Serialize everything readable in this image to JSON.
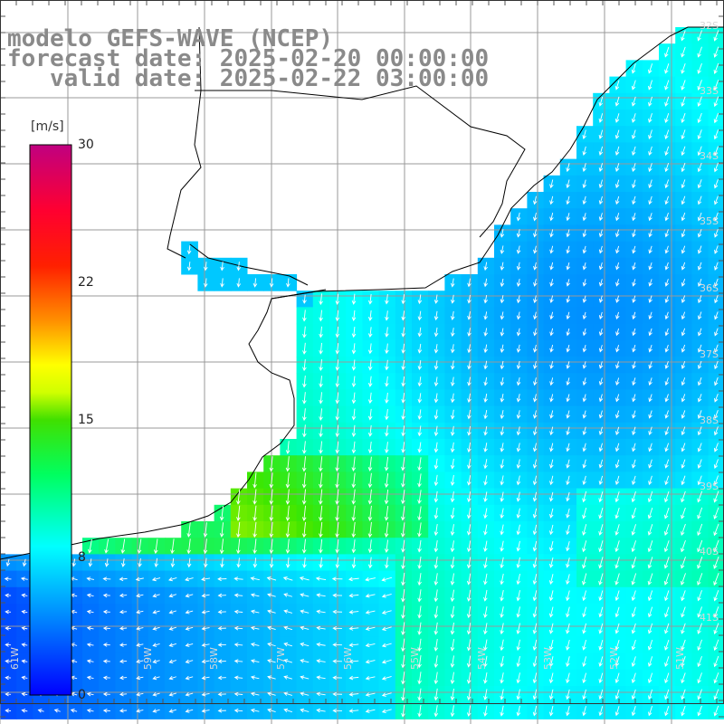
{
  "title": {
    "line1": "modelo GEFS-WAVE (NCEP)",
    "line2": "forecast date: 2025-02-20 00:00:00",
    "line3": "   valid date: 2025-02-22 03:00:00"
  },
  "colorbar": {
    "unit": "[m/s]",
    "ticks": [
      "30",
      "22",
      "15",
      "8",
      "0"
    ],
    "tick_values": [
      30,
      22,
      15,
      8,
      0
    ],
    "range": [
      0,
      30
    ]
  },
  "map": {
    "lat_labels": [
      "32S",
      "33S",
      "34S",
      "35S",
      "36S",
      "37S",
      "38S",
      "39S",
      "40S",
      "41S"
    ],
    "lon_labels": [
      "61W",
      "59W",
      "58W",
      "57W",
      "56W",
      "55W",
      "54W",
      "53W",
      "52W",
      "51W"
    ],
    "field": "wind speed",
    "colors": {
      "land": "#ffffff",
      "grid": "#9a9a9a",
      "coast": "#000000",
      "arrows": "#ffffff"
    }
  }
}
